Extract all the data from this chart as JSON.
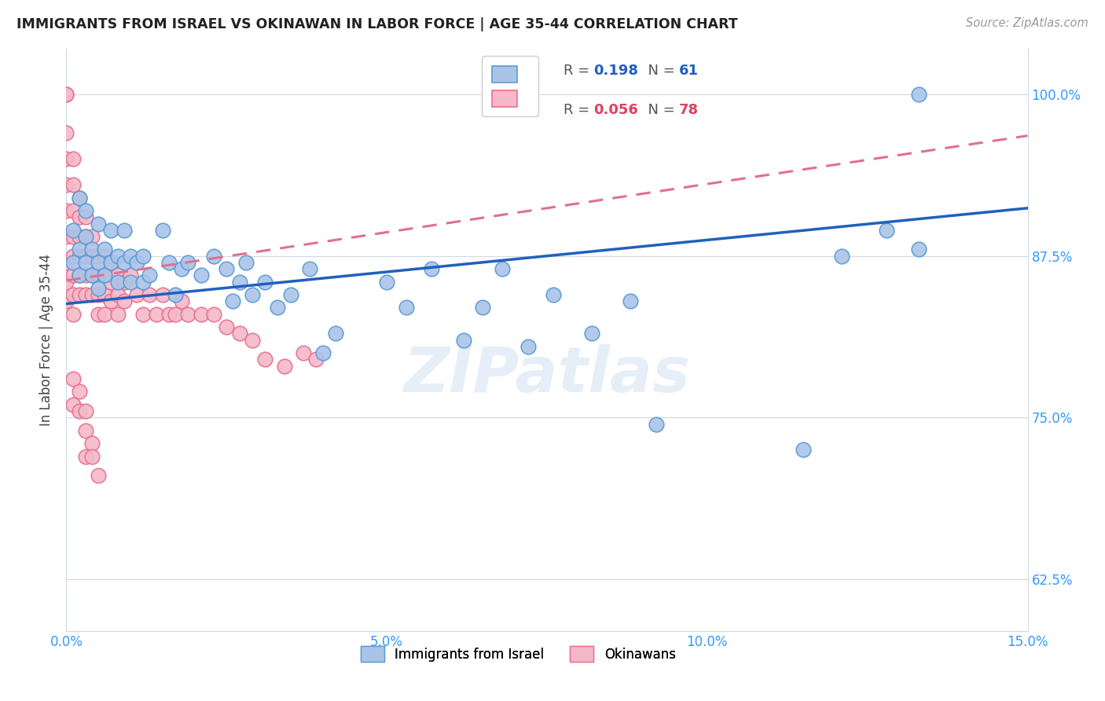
{
  "title": "IMMIGRANTS FROM ISRAEL VS OKINAWAN IN LABOR FORCE | AGE 35-44 CORRELATION CHART",
  "source": "Source: ZipAtlas.com",
  "ylabel": "In Labor Force | Age 35-44",
  "xmin": 0.0,
  "xmax": 0.15,
  "ymin": 0.585,
  "ymax": 1.035,
  "yticks": [
    0.625,
    0.75,
    0.875,
    1.0
  ],
  "ytick_labels": [
    "62.5%",
    "75.0%",
    "87.5%",
    "100.0%"
  ],
  "xticks": [
    0.0,
    0.05,
    0.1,
    0.15
  ],
  "xtick_labels": [
    "0.0%",
    "5.0%",
    "10.0%",
    "15.0%"
  ],
  "bottom_legend1": "Immigrants from Israel",
  "bottom_legend2": "Okinawans",
  "israel_color": "#aac4e8",
  "okinawan_color": "#f4b8c8",
  "israel_edge": "#5b9bd5",
  "okinawan_edge": "#e87090",
  "trendline_israel_color": "#2060c0",
  "trendline_okinawan_color": "#e07090",
  "israel_R": 0.198,
  "israel_N": 61,
  "okinawan_R": 0.056,
  "okinawan_N": 78,
  "israel_trendline_x": [
    0.0,
    0.15
  ],
  "israel_trendline_y": [
    0.838,
    0.912
  ],
  "okinawan_trendline_x": [
    0.0,
    0.15
  ],
  "okinawan_trendline_y": [
    0.856,
    0.968
  ],
  "israel_x": [
    0.001,
    0.001,
    0.002,
    0.002,
    0.002,
    0.003,
    0.003,
    0.003,
    0.004,
    0.004,
    0.005,
    0.005,
    0.005,
    0.006,
    0.006,
    0.007,
    0.007,
    0.008,
    0.008,
    0.009,
    0.009,
    0.01,
    0.01,
    0.011,
    0.012,
    0.012,
    0.013,
    0.015,
    0.016,
    0.017,
    0.018,
    0.019,
    0.021,
    0.023,
    0.025,
    0.026,
    0.027,
    0.028,
    0.029,
    0.031,
    0.033,
    0.035,
    0.038,
    0.04,
    0.042,
    0.05,
    0.053,
    0.057,
    0.062,
    0.065,
    0.068,
    0.072,
    0.076,
    0.082,
    0.088,
    0.092,
    0.115,
    0.121,
    0.128,
    0.133,
    0.133
  ],
  "israel_y": [
    0.895,
    0.87,
    0.92,
    0.88,
    0.86,
    0.91,
    0.89,
    0.87,
    0.88,
    0.86,
    0.9,
    0.87,
    0.85,
    0.88,
    0.86,
    0.895,
    0.87,
    0.875,
    0.855,
    0.895,
    0.87,
    0.875,
    0.855,
    0.87,
    0.855,
    0.875,
    0.86,
    0.895,
    0.87,
    0.845,
    0.865,
    0.87,
    0.86,
    0.875,
    0.865,
    0.84,
    0.855,
    0.87,
    0.845,
    0.855,
    0.835,
    0.845,
    0.865,
    0.8,
    0.815,
    0.855,
    0.835,
    0.865,
    0.81,
    0.835,
    0.865,
    0.805,
    0.845,
    0.815,
    0.84,
    0.745,
    0.725,
    0.875,
    0.895,
    0.88,
    1.0
  ],
  "okinawan_x": [
    0.0,
    0.0,
    0.0,
    0.0,
    0.0,
    0.0,
    0.0,
    0.0,
    0.0,
    0.0,
    0.001,
    0.001,
    0.001,
    0.001,
    0.001,
    0.001,
    0.001,
    0.001,
    0.002,
    0.002,
    0.002,
    0.002,
    0.002,
    0.002,
    0.003,
    0.003,
    0.003,
    0.003,
    0.003,
    0.004,
    0.004,
    0.004,
    0.004,
    0.005,
    0.005,
    0.005,
    0.005,
    0.006,
    0.006,
    0.006,
    0.006,
    0.007,
    0.007,
    0.007,
    0.008,
    0.008,
    0.008,
    0.009,
    0.009,
    0.01,
    0.011,
    0.012,
    0.013,
    0.014,
    0.015,
    0.016,
    0.017,
    0.018,
    0.019,
    0.021,
    0.023,
    0.025,
    0.027,
    0.029,
    0.031,
    0.034,
    0.037,
    0.039,
    0.001,
    0.001,
    0.002,
    0.002,
    0.003,
    0.003,
    0.003,
    0.004,
    0.004,
    0.005
  ],
  "okinawan_y": [
    1.0,
    1.0,
    0.97,
    0.95,
    0.93,
    0.91,
    0.89,
    0.87,
    0.855,
    0.84,
    0.95,
    0.93,
    0.91,
    0.89,
    0.875,
    0.86,
    0.845,
    0.83,
    0.92,
    0.905,
    0.89,
    0.875,
    0.86,
    0.845,
    0.905,
    0.89,
    0.875,
    0.86,
    0.845,
    0.89,
    0.875,
    0.86,
    0.845,
    0.875,
    0.86,
    0.845,
    0.83,
    0.875,
    0.86,
    0.845,
    0.83,
    0.87,
    0.855,
    0.84,
    0.86,
    0.845,
    0.83,
    0.855,
    0.84,
    0.86,
    0.845,
    0.83,
    0.845,
    0.83,
    0.845,
    0.83,
    0.83,
    0.84,
    0.83,
    0.83,
    0.83,
    0.82,
    0.815,
    0.81,
    0.795,
    0.79,
    0.8,
    0.795,
    0.78,
    0.76,
    0.77,
    0.755,
    0.755,
    0.74,
    0.72,
    0.73,
    0.72,
    0.705
  ]
}
